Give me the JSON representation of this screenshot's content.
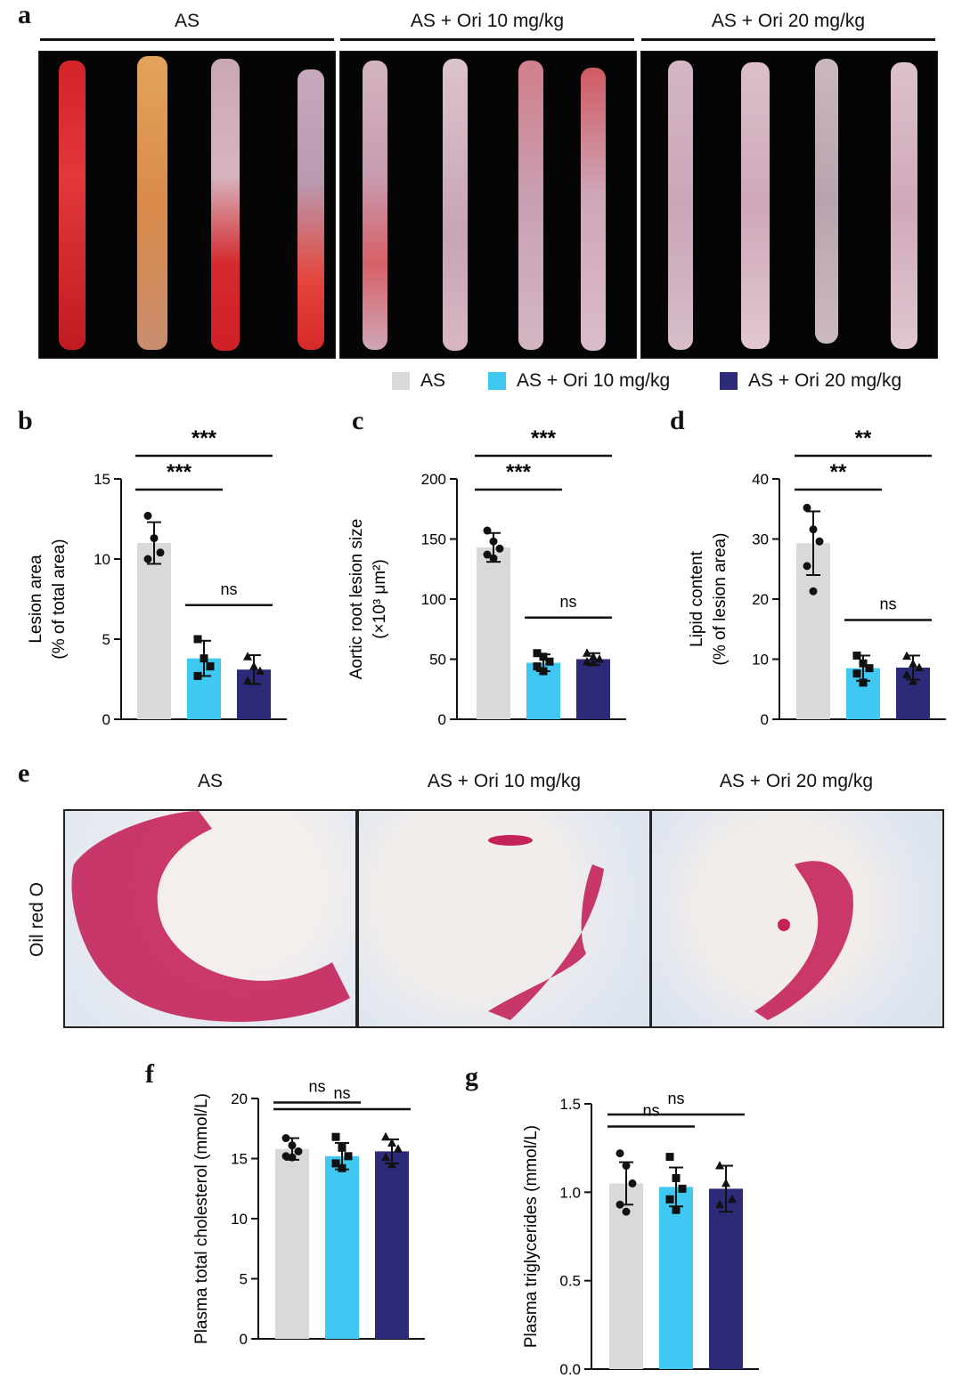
{
  "colors": {
    "AS": "#d9d9d9",
    "AS + Ori 10 mg/kg": "#3ec8f2",
    "AS + Ori 20 mg/kg": "#2d2a7a",
    "lesion": "#d3232b",
    "oil_red": "#c4235a",
    "micro_bg": "#efe7e3",
    "nuclei": "#4a86c8"
  },
  "panels": {
    "a": {
      "letter": "a",
      "groups": [
        "AS",
        "AS + Ori 10 mg/kg",
        "AS + Ori 20 mg/kg"
      ]
    },
    "e": {
      "letter": "e",
      "row_label": "Oil red O",
      "groups": [
        "AS",
        "AS + Ori 10 mg/kg",
        "AS + Ori 20 mg/kg"
      ]
    }
  },
  "legend": [
    "AS",
    "AS + Ori 10 mg/kg",
    "AS + Ori 20 mg/kg"
  ],
  "chart_data": [
    {
      "id": "b",
      "letter": "b",
      "type": "bar",
      "categories": [
        "AS",
        "AS + Ori 10 mg/kg",
        "AS + Ori 20 mg/kg"
      ],
      "values": [
        11.0,
        3.8,
        3.1
      ],
      "errors": [
        1.3,
        1.1,
        0.9
      ],
      "points": [
        [
          12.7,
          11.3,
          10.4,
          10.0
        ],
        [
          5.0,
          3.8,
          3.3,
          2.7
        ],
        [
          3.9,
          3.3,
          3.0,
          2.4
        ]
      ],
      "markers": [
        "circle",
        "square",
        "triangle"
      ],
      "ylabel": [
        "Lesion area",
        "(% of total area)"
      ],
      "ylim": [
        0,
        15
      ],
      "yticks": [
        "0",
        "5",
        "10",
        "15"
      ],
      "significance": [
        {
          "from": 0,
          "to": 1,
          "label": "***",
          "level": 2
        },
        {
          "from": 0,
          "to": 2,
          "label": "***",
          "level": 3
        },
        {
          "from": 1,
          "to": 2,
          "label": "ns",
          "level": 1
        }
      ]
    },
    {
      "id": "c",
      "letter": "c",
      "type": "bar",
      "categories": [
        "AS",
        "AS + Ori 10 mg/kg",
        "AS + Ori 20 mg/kg"
      ],
      "values": [
        143,
        47,
        50
      ],
      "errors": [
        12,
        7,
        5
      ],
      "points": [
        [
          157,
          148,
          142,
          137,
          134
        ],
        [
          55,
          52,
          48,
          44,
          40
        ],
        [
          55,
          52,
          50,
          48,
          47
        ]
      ],
      "markers": [
        "circle",
        "square",
        "triangle"
      ],
      "ylabel": [
        "Aortic root lesion size",
        "(×10³ μm²)"
      ],
      "ylim": [
        0,
        200
      ],
      "yticks": [
        "0",
        "50",
        "100",
        "150",
        "200"
      ],
      "significance": [
        {
          "from": 0,
          "to": 1,
          "label": "***",
          "level": 2
        },
        {
          "from": 0,
          "to": 2,
          "label": "***",
          "level": 3
        },
        {
          "from": 1,
          "to": 2,
          "label": "ns",
          "level": 1
        }
      ]
    },
    {
      "id": "d",
      "letter": "d",
      "type": "bar",
      "categories": [
        "AS",
        "AS + Ori 10 mg/kg",
        "AS + Ori 20 mg/kg"
      ],
      "values": [
        29.3,
        8.5,
        8.6
      ],
      "errors": [
        5.3,
        2.1,
        2.0
      ],
      "points": [
        [
          35.2,
          31.6,
          29.6,
          25.5,
          21.3
        ],
        [
          10.6,
          9.3,
          8.5,
          7.6,
          6.1
        ],
        [
          10.5,
          9.2,
          8.6,
          7.4,
          6.3
        ]
      ],
      "markers": [
        "circle",
        "square",
        "triangle"
      ],
      "ylabel": [
        "Lipid content",
        "(% of lesion area)"
      ],
      "ylim": [
        0,
        40
      ],
      "yticks": [
        "0",
        "10",
        "20",
        "30",
        "40"
      ],
      "significance": [
        {
          "from": 0,
          "to": 1,
          "label": "**",
          "level": 2
        },
        {
          "from": 0,
          "to": 2,
          "label": "**",
          "level": 3
        },
        {
          "from": 1,
          "to": 2,
          "label": "ns",
          "level": 1
        }
      ]
    },
    {
      "id": "f",
      "letter": "f",
      "type": "bar",
      "categories": [
        "AS",
        "AS + Ori 10 mg/kg",
        "AS + Ori 20 mg/kg"
      ],
      "values": [
        15.8,
        15.2,
        15.6
      ],
      "errors": [
        0.9,
        1.1,
        1.0
      ],
      "points": [
        [
          16.7,
          16.1,
          15.6,
          15.2,
          15.1
        ],
        [
          16.8,
          15.9,
          15.2,
          14.6,
          14.2
        ],
        [
          16.8,
          16.3,
          15.8,
          15.1,
          14.5
        ]
      ],
      "markers": [
        "circle",
        "square",
        "triangle"
      ],
      "ylabel": [
        "Plasma total cholesterol (mmol/L)"
      ],
      "ylim": [
        0,
        20
      ],
      "yticks": [
        "0",
        "5",
        "10",
        "15",
        "20"
      ],
      "significance": [
        {
          "from": 0,
          "to": 1,
          "label": "ns",
          "level": 1
        },
        {
          "from": 0,
          "to": 2,
          "label": "ns",
          "level": 2
        }
      ]
    },
    {
      "id": "g",
      "letter": "g",
      "type": "bar",
      "categories": [
        "AS",
        "AS + Ori 10 mg/kg",
        "AS + Ori 20 mg/kg"
      ],
      "values": [
        1.05,
        1.03,
        1.02
      ],
      "errors": [
        0.12,
        0.11,
        0.13
      ],
      "points": [
        [
          1.22,
          1.15,
          1.05,
          0.93,
          0.89
        ],
        [
          1.2,
          1.08,
          1.02,
          0.96,
          0.9
        ],
        [
          1.15,
          1.05,
          0.96,
          0.93
        ]
      ],
      "markers": [
        "circle",
        "square",
        "triangle"
      ],
      "ylabel": [
        "Plasma triglycerides (mmol/L)"
      ],
      "ylim": [
        0,
        1.5
      ],
      "yticks": [
        "0.0",
        "0.5",
        "1.0",
        "1.5"
      ],
      "significance": [
        {
          "from": 0,
          "to": 1,
          "label": "ns",
          "level": 1
        },
        {
          "from": 0,
          "to": 2,
          "label": "ns",
          "level": 2
        }
      ]
    }
  ]
}
